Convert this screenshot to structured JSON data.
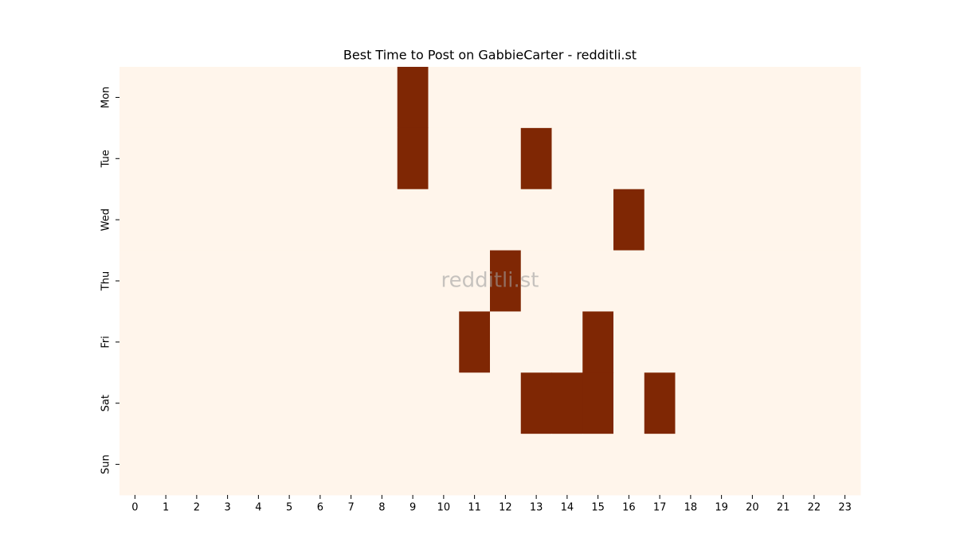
{
  "chart_data": {
    "type": "heatmap",
    "title": "Best Time to Post on GabbieCarter - redditli.st",
    "watermark": "redditli.st",
    "x_categories": [
      "0",
      "1",
      "2",
      "3",
      "4",
      "5",
      "6",
      "7",
      "8",
      "9",
      "10",
      "11",
      "12",
      "13",
      "14",
      "15",
      "16",
      "17",
      "18",
      "19",
      "20",
      "21",
      "22",
      "23"
    ],
    "y_categories": [
      "Mon",
      "Tue",
      "Wed",
      "Thu",
      "Fri",
      "Sat",
      "Sun"
    ],
    "values": [
      [
        0,
        0,
        0,
        0,
        0,
        0,
        0,
        0,
        0,
        1,
        0,
        0,
        0,
        0,
        0,
        0,
        0,
        0,
        0,
        0,
        0,
        0,
        0,
        0
      ],
      [
        0,
        0,
        0,
        0,
        0,
        0,
        0,
        0,
        0,
        1,
        0,
        0,
        0,
        1,
        0,
        0,
        0,
        0,
        0,
        0,
        0,
        0,
        0,
        0
      ],
      [
        0,
        0,
        0,
        0,
        0,
        0,
        0,
        0,
        0,
        0,
        0,
        0,
        0,
        0,
        0,
        0,
        1,
        0,
        0,
        0,
        0,
        0,
        0,
        0
      ],
      [
        0,
        0,
        0,
        0,
        0,
        0,
        0,
        0,
        0,
        0,
        0,
        0,
        1,
        0,
        0,
        0,
        0,
        0,
        0,
        0,
        0,
        0,
        0,
        0
      ],
      [
        0,
        0,
        0,
        0,
        0,
        0,
        0,
        0,
        0,
        0,
        0,
        1,
        0,
        0,
        0,
        1,
        0,
        0,
        0,
        0,
        0,
        0,
        0,
        0
      ],
      [
        0,
        0,
        0,
        0,
        0,
        0,
        0,
        0,
        0,
        0,
        0,
        0,
        0,
        1,
        1,
        1,
        0,
        1,
        0,
        0,
        0,
        0,
        0,
        0
      ],
      [
        0,
        0,
        0,
        0,
        0,
        0,
        0,
        0,
        0,
        0,
        0,
        0,
        0,
        0,
        0,
        0,
        0,
        0,
        0,
        0,
        0,
        0,
        0,
        0
      ]
    ],
    "colors": [
      "#fff5eb",
      "#7f2704"
    ]
  }
}
